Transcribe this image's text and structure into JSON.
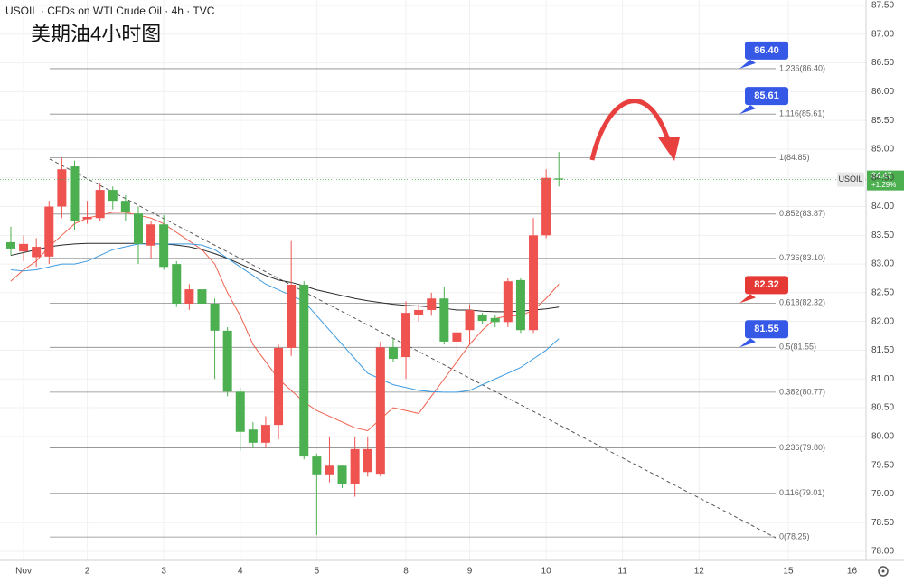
{
  "chart_data": {
    "type": "candlestick",
    "title": "USOIL · CFDs on WTI Crude Oil · 4h · TVC",
    "subtitle": "美期油4小时图",
    "up_color": "#ef5350",
    "down_color": "#4caf50",
    "grid": true,
    "xlim": [
      -0.85,
      67.1
    ],
    "xticks": [
      {
        "value": 1,
        "label": "Nov"
      },
      {
        "value": 6,
        "label": "2"
      },
      {
        "value": 12,
        "label": "3"
      },
      {
        "value": 18,
        "label": "4"
      },
      {
        "value": 24,
        "label": "5"
      },
      {
        "value": 31,
        "label": "8"
      },
      {
        "value": 36,
        "label": "9"
      },
      {
        "value": 42,
        "label": "10"
      },
      {
        "value": 48,
        "label": "11"
      },
      {
        "value": 54,
        "label": "12"
      },
      {
        "value": 61,
        "label": "15"
      },
      {
        "value": 66,
        "label": "16"
      }
    ],
    "ylim": [
      78.0,
      87.5
    ],
    "yticks": [
      {
        "value": 78.0,
        "label": "78.00"
      },
      {
        "value": 78.5,
        "label": "78.50"
      },
      {
        "value": 79.0,
        "label": "79.00"
      },
      {
        "value": 79.5,
        "label": "79.50"
      },
      {
        "value": 80.0,
        "label": "80.00"
      },
      {
        "value": 80.5,
        "label": "80.50"
      },
      {
        "value": 81.0,
        "label": "81.00"
      },
      {
        "value": 81.5,
        "label": "81.50"
      },
      {
        "value": 82.0,
        "label": "82.00"
      },
      {
        "value": 82.5,
        "label": "82.50"
      },
      {
        "value": 83.0,
        "label": "83.00"
      },
      {
        "value": 83.5,
        "label": "83.50"
      },
      {
        "value": 84.0,
        "label": "84.00"
      },
      {
        "value": 84.5,
        "label": "84.50"
      },
      {
        "value": 85.0,
        "label": "85.00"
      },
      {
        "value": 85.5,
        "label": "85.50"
      },
      {
        "value": 86.0,
        "label": "86.00"
      },
      {
        "value": 86.5,
        "label": "86.50"
      },
      {
        "value": 87.0,
        "label": "87.00"
      },
      {
        "value": 87.5,
        "label": "87.50"
      }
    ],
    "x": [
      0,
      1,
      2,
      3,
      4,
      5,
      6,
      7,
      8,
      9,
      10,
      11,
      12,
      13,
      14,
      15,
      16,
      17,
      18,
      19,
      20,
      21,
      22,
      23,
      24,
      25,
      26,
      27,
      28,
      29,
      30,
      31,
      32,
      33,
      34,
      35,
      36,
      37,
      38,
      39,
      40,
      41,
      42,
      43
    ],
    "open": [
      83.38,
      83.22,
      83.12,
      83.13,
      84.0,
      84.7,
      83.78,
      83.8,
      84.29,
      84.1,
      83.88,
      83.32,
      83.69,
      83.0,
      82.31,
      82.56,
      82.31,
      81.84,
      80.78,
      80.12,
      79.89,
      80.2,
      81.54,
      82.64,
      79.65,
      79.34,
      79.49,
      79.18,
      79.38,
      79.35,
      81.55,
      81.38,
      82.12,
      82.2,
      82.4,
      81.65,
      81.85,
      82.11,
      82.06,
      81.99,
      82.72,
      81.85,
      83.5,
      84.49
    ],
    "high": [
      83.65,
      83.5,
      83.45,
      84.1,
      84.85,
      84.8,
      84.1,
      84.4,
      84.35,
      84.2,
      84.0,
      83.75,
      83.85,
      83.05,
      82.65,
      82.6,
      82.4,
      81.9,
      80.85,
      80.25,
      80.35,
      81.6,
      83.4,
      82.7,
      79.7,
      80.0,
      79.5,
      80.0,
      80.0,
      81.65,
      81.7,
      82.35,
      82.3,
      82.5,
      82.6,
      81.9,
      82.3,
      82.15,
      82.12,
      82.75,
      82.75,
      83.8,
      84.65,
      84.95
    ],
    "low": [
      83.15,
      83.05,
      82.95,
      83.0,
      83.8,
      83.6,
      83.7,
      83.75,
      83.95,
      83.75,
      83.0,
      83.1,
      82.9,
      82.25,
      82.2,
      82.2,
      81.0,
      80.7,
      79.75,
      79.8,
      79.8,
      79.95,
      81.4,
      79.6,
      78.28,
      79.2,
      79.1,
      78.95,
      79.3,
      79.3,
      81.3,
      81.0,
      82.0,
      82.1,
      81.6,
      81.35,
      81.6,
      81.95,
      81.9,
      81.9,
      81.8,
      81.8,
      83.45,
      84.35
    ],
    "close": [
      83.27,
      83.35,
      83.3,
      84.0,
      84.65,
      83.75,
      83.82,
      84.29,
      84.1,
      83.9,
      83.35,
      83.69,
      82.95,
      82.31,
      82.56,
      82.31,
      81.84,
      80.78,
      80.08,
      79.89,
      80.2,
      81.54,
      82.64,
      79.65,
      79.34,
      79.49,
      79.18,
      79.78,
      79.78,
      81.55,
      81.35,
      82.15,
      82.2,
      82.4,
      81.65,
      81.81,
      82.2,
      82.01,
      81.99,
      82.7,
      81.85,
      83.5,
      84.5,
      84.47
    ],
    "series": [
      {
        "color": "#2a2a2a",
        "values": [
          83.15,
          83.2,
          83.25,
          83.3,
          83.33,
          83.35,
          83.36,
          83.36,
          83.36,
          83.36,
          83.36,
          83.35,
          83.35,
          83.33,
          83.3,
          83.25,
          83.18,
          83.1,
          83.0,
          82.9,
          82.8,
          82.72,
          82.68,
          82.62,
          82.55,
          82.5,
          82.45,
          82.4,
          82.36,
          82.33,
          82.3,
          82.28,
          82.27,
          82.25,
          82.23,
          82.2,
          82.2,
          82.18,
          82.17,
          82.17,
          82.18,
          82.2,
          82.22,
          82.25
        ]
      },
      {
        "color": "#f0604d",
        "values": [
          82.7,
          82.9,
          83.05,
          83.3,
          83.5,
          83.7,
          83.8,
          83.85,
          83.9,
          83.9,
          83.85,
          83.8,
          83.7,
          83.55,
          83.4,
          83.25,
          83.0,
          82.5,
          82.1,
          81.6,
          81.3,
          81.0,
          80.8,
          80.6,
          80.45,
          80.35,
          80.25,
          80.15,
          80.1,
          80.3,
          80.5,
          80.45,
          80.4,
          80.7,
          81.0,
          81.3,
          81.6,
          81.85,
          82.05,
          82.1,
          82.1,
          82.2,
          82.4,
          82.65
        ]
      },
      {
        "color": "#3d9be0",
        "values": [
          82.9,
          82.88,
          82.9,
          82.95,
          83.0,
          83.0,
          83.05,
          83.15,
          83.25,
          83.3,
          83.35,
          83.35,
          83.35,
          83.35,
          83.35,
          83.33,
          83.25,
          83.1,
          82.95,
          82.8,
          82.65,
          82.55,
          82.45,
          82.35,
          82.1,
          81.85,
          81.6,
          81.35,
          81.1,
          81.0,
          80.9,
          80.85,
          80.8,
          80.78,
          80.77,
          80.77,
          80.8,
          80.9,
          81.0,
          81.1,
          81.2,
          81.35,
          81.5,
          81.7
        ]
      }
    ],
    "fib_levels": [
      {
        "value": 86.4,
        "label": "1.236(86.40)"
      },
      {
        "value": 85.61,
        "label": "1.116(85.61)"
      },
      {
        "value": 84.85,
        "label": "1(84.85)"
      },
      {
        "value": 83.87,
        "label": "0.852(83.87)"
      },
      {
        "value": 83.1,
        "label": "0.736(83.10)"
      },
      {
        "value": 82.32,
        "label": "0.618(82.32)"
      },
      {
        "value": 81.55,
        "label": "0.5(81.55)"
      },
      {
        "value": 80.77,
        "label": "0.382(80.77)"
      },
      {
        "value": 79.8,
        "label": "0.236(79.80)"
      },
      {
        "value": 79.01,
        "label": "0.116(79.01)"
      },
      {
        "value": 78.25,
        "label": "0(78.25)"
      }
    ],
    "callouts": [
      {
        "value": 86.4,
        "label": "86.40",
        "color": "#3558e6"
      },
      {
        "value": 85.61,
        "label": "85.61",
        "color": "#3558e6"
      },
      {
        "value": 82.32,
        "label": "82.32",
        "color": "#e53935"
      },
      {
        "value": 81.55,
        "label": "81.55",
        "color": "#3558e6"
      }
    ],
    "last_price": {
      "symbol": "USOIL",
      "value": 84.47,
      "label": "84.47",
      "change": "+1.29%",
      "color": "#4caf50"
    }
  }
}
